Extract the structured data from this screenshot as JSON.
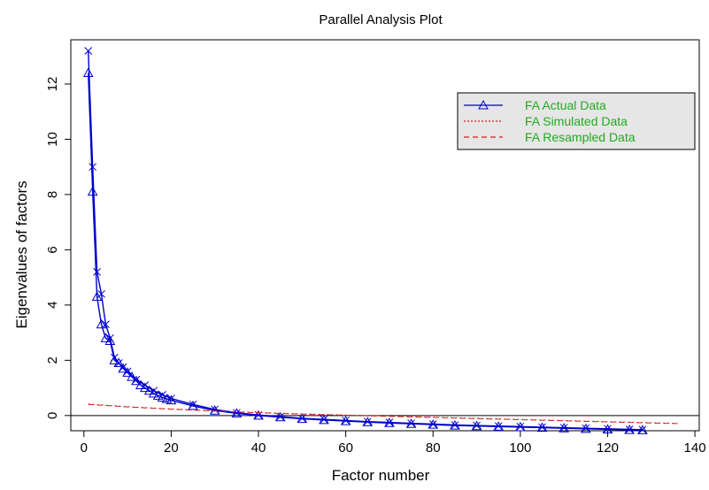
{
  "chart_data": {
    "type": "line",
    "title": "Parallel Analysis Plot",
    "xlabel": "Factor number",
    "ylabel": "Eigenvalues of factors",
    "xlim": [
      -3,
      141
    ],
    "ylim": [
      -0.55,
      13.6
    ],
    "x_ticks": [
      0,
      20,
      40,
      60,
      80,
      100,
      120,
      140
    ],
    "y_ticks": [
      0,
      2,
      4,
      6,
      8,
      10,
      12
    ],
    "reference_line_y": 0,
    "grid": false,
    "legend_position": "top-right",
    "legend": [
      {
        "label": "FA  Actual Data",
        "style": "solid-triangle",
        "color": "#0000cc"
      },
      {
        "label": "FA  Simulated Data",
        "style": "dotted",
        "color": "#cc2222"
      },
      {
        "label": "FA  Resampled Data",
        "style": "dashed",
        "color": "#cc2222"
      }
    ],
    "legend_text_color": "#22aa22",
    "series": [
      {
        "name": "FA  Actual Data",
        "marker": "triangle",
        "color": "#0000cc",
        "x": [
          1,
          2,
          3,
          4,
          5,
          6,
          7,
          8,
          9,
          10,
          11,
          12,
          13,
          14,
          15,
          16,
          17,
          18,
          19,
          20,
          25,
          30,
          35,
          40,
          45,
          50,
          55,
          60,
          65,
          70,
          75,
          80,
          85,
          90,
          95,
          100,
          105,
          110,
          115,
          120,
          125,
          128
        ],
        "y": [
          12.4,
          8.1,
          4.3,
          3.3,
          2.8,
          2.7,
          2.0,
          1.9,
          1.7,
          1.55,
          1.4,
          1.25,
          1.1,
          1.0,
          0.9,
          0.8,
          0.72,
          0.65,
          0.6,
          0.55,
          0.35,
          0.18,
          0.08,
          0.0,
          -0.06,
          -0.12,
          -0.16,
          -0.2,
          -0.24,
          -0.27,
          -0.3,
          -0.33,
          -0.36,
          -0.38,
          -0.4,
          -0.42,
          -0.44,
          -0.46,
          -0.48,
          -0.5,
          -0.52,
          -0.53
        ]
      },
      {
        "name": "FA  Actual Data (PC)",
        "marker": "x",
        "color": "#0000cc",
        "x": [
          1,
          2,
          3,
          4,
          5,
          6,
          7,
          8,
          9,
          10,
          12,
          14,
          16,
          18,
          20,
          25,
          30,
          35,
          40,
          45,
          50,
          55,
          60,
          65,
          70,
          75,
          80,
          85,
          90,
          95,
          100,
          105,
          110,
          115,
          120,
          125,
          128
        ],
        "y": [
          13.2,
          9.0,
          5.2,
          4.4,
          3.3,
          2.8,
          2.1,
          1.9,
          1.75,
          1.6,
          1.3,
          1.1,
          0.9,
          0.75,
          0.62,
          0.4,
          0.22,
          0.1,
          0.02,
          -0.04,
          -0.1,
          -0.14,
          -0.18,
          -0.22,
          -0.25,
          -0.28,
          -0.31,
          -0.34,
          -0.36,
          -0.38,
          -0.4,
          -0.42,
          -0.44,
          -0.46,
          -0.48,
          -0.5,
          -0.51
        ]
      },
      {
        "name": "FA  Simulated Data",
        "marker": "none",
        "color": "#cc2222",
        "x": [
          1,
          10,
          20,
          30,
          40,
          50,
          60,
          70,
          80,
          90,
          100,
          110,
          120,
          130,
          136
        ],
        "y": [
          0.42,
          0.32,
          0.24,
          0.17,
          0.11,
          0.06,
          0.02,
          -0.02,
          -0.06,
          -0.1,
          -0.14,
          -0.18,
          -0.22,
          -0.26,
          -0.28
        ]
      },
      {
        "name": "FA  Resampled Data",
        "marker": "none",
        "color": "#cc2222",
        "x": [
          1,
          10,
          20,
          30,
          40,
          50,
          60,
          70,
          80,
          90,
          100,
          110,
          120,
          130,
          136
        ],
        "y": [
          0.4,
          0.31,
          0.23,
          0.16,
          0.1,
          0.05,
          0.01,
          -0.03,
          -0.07,
          -0.11,
          -0.15,
          -0.19,
          -0.23,
          -0.27,
          -0.29
        ]
      }
    ]
  }
}
